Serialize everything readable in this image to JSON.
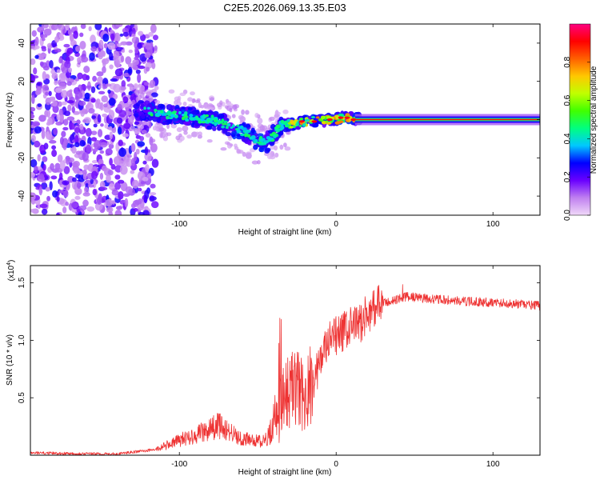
{
  "chart_data": [
    {
      "type": "heatmap",
      "title": "C2E5.2026.069.13.35.E03",
      "xlabel": "Height of straight line (km)",
      "ylabel": "Frequency (Hz)",
      "xlim": [
        -195,
        130
      ],
      "ylim": [
        -50,
        50
      ],
      "xticks": [
        -100,
        0,
        100
      ],
      "yticks": [
        -40,
        -20,
        0,
        20,
        40
      ],
      "colorbar": {
        "label": "Normalized spectral amplitude",
        "range": [
          0,
          1
        ],
        "ticks": [
          0.0,
          0.2,
          0.4,
          0.6,
          0.8
        ],
        "tick_labels": [
          "0.0",
          "0.2",
          "0.4",
          "0.6",
          "0.8"
        ],
        "colors": [
          "#f0d8f8",
          "#c080f0",
          "#6a00ff",
          "#0000ff",
          "#00c8ff",
          "#00ff80",
          "#40ff00",
          "#c0ff00",
          "#ffc800",
          "#ff6000",
          "#ff0000",
          "#ff0080"
        ]
      },
      "features": {
        "noise_region_km": [
          -195,
          -115
        ],
        "ridge": [
          {
            "km": -125,
            "hz": 5
          },
          {
            "km": -100,
            "hz": 2
          },
          {
            "km": -80,
            "hz": 0
          },
          {
            "km": -60,
            "hz": -6
          },
          {
            "km": -45,
            "hz": -13
          },
          {
            "km": -35,
            "hz": -3
          },
          {
            "km": -20,
            "hz": -1
          },
          {
            "km": 0,
            "hz": 0
          },
          {
            "km": 5,
            "hz": 1
          },
          {
            "km": 15,
            "hz": 0
          },
          {
            "km": 130,
            "hz": 0
          }
        ]
      }
    },
    {
      "type": "line",
      "xlabel": "Height of straight line (km)",
      "ylabel": "SNR (10 * v/v)",
      "y_multiplier": "(x10^4)",
      "y_multiplier_base": "(x10",
      "y_multiplier_exp": "4",
      "y_multiplier_close": ")",
      "xlim": [
        -195,
        130
      ],
      "ylim": [
        0,
        1.65
      ],
      "xticks": [
        -100,
        0,
        100
      ],
      "yticks": [
        0.5,
        1.0,
        1.5
      ],
      "ytick_labels": [
        "0.5",
        "1.0",
        "1.5"
      ],
      "color": "#ee3333",
      "series_envelope": [
        {
          "km": -195,
          "snr": 0.02
        },
        {
          "km": -140,
          "snr": 0.01
        },
        {
          "km": -115,
          "snr": 0.05
        },
        {
          "km": -100,
          "snr": 0.13
        },
        {
          "km": -85,
          "snr": 0.2
        },
        {
          "km": -75,
          "snr": 0.26
        },
        {
          "km": -60,
          "snr": 0.14
        },
        {
          "km": -45,
          "snr": 0.12
        },
        {
          "km": -38,
          "snr": 0.35
        },
        {
          "km": -32,
          "snr": 0.55
        },
        {
          "km": -25,
          "snr": 0.6
        },
        {
          "km": -20,
          "snr": 0.48
        },
        {
          "km": -12,
          "snr": 0.75
        },
        {
          "km": -5,
          "snr": 0.98
        },
        {
          "km": 5,
          "snr": 1.08
        },
        {
          "km": 15,
          "snr": 1.15
        },
        {
          "km": 25,
          "snr": 1.3
        },
        {
          "km": 35,
          "snr": 1.34
        },
        {
          "km": 45,
          "snr": 1.38
        },
        {
          "km": 60,
          "snr": 1.36
        },
        {
          "km": 80,
          "snr": 1.34
        },
        {
          "km": 100,
          "snr": 1.33
        },
        {
          "km": 130,
          "snr": 1.3
        }
      ]
    }
  ]
}
